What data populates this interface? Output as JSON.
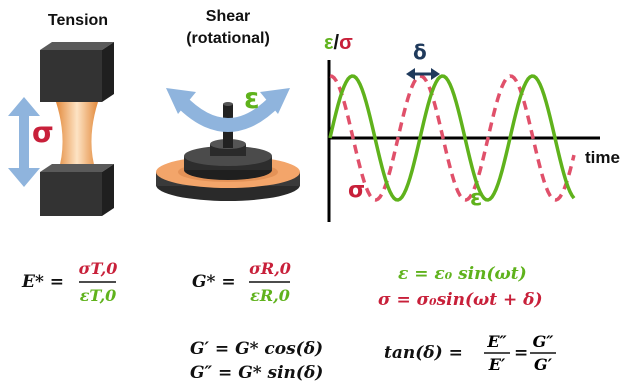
{
  "labels": {
    "tension": "Tension",
    "shear_line1": "Shear",
    "shear_line2": "(rotational)",
    "sigma": "σ",
    "epsilon": "ε",
    "delta": "δ",
    "eps_axis": "ε",
    "slash": "/",
    "sig_axis": "σ",
    "time": "time"
  },
  "equations": {
    "estar_lhs": "E* =",
    "estar_num": "σT,0",
    "estar_den": "εT,0",
    "gstar_lhs": "G* =",
    "gstar_num": "σR,0",
    "gstar_den": "εR,0",
    "strain_eq": "ε = ε₀ sin(ωt)",
    "stress_eq": "σ = σ₀sin(ωt + δ)",
    "gprime": "G′ = G* cos(δ)",
    "gdprime": "G″ = G* sin(δ)",
    "tan_lhs": "tan(δ) =",
    "tan_eq": "=",
    "tan_num1": "E″",
    "tan_den1": "E′",
    "tan_num2": "G″",
    "tan_den2": "G′"
  },
  "colors": {
    "green": "#5fb21c",
    "red": "#c8203a",
    "blue_arrow": "#8fb4dd",
    "dark_block": "#2b2b2b",
    "specimen": "#f1b67a"
  }
}
